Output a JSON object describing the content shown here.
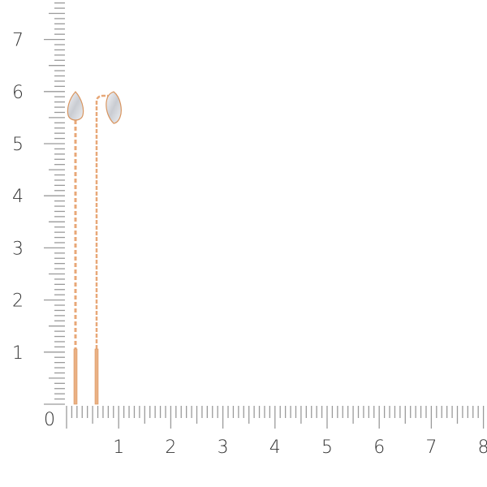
{
  "ruler": {
    "zero_label": "0",
    "vertical_labels": [
      "1",
      "2",
      "3",
      "4",
      "5",
      "6",
      "7"
    ],
    "horizontal_labels": [
      "1",
      "2",
      "3",
      "4",
      "5",
      "6",
      "7",
      "8"
    ],
    "unit_step_mm": 1,
    "tick_color": "#9a9a9a"
  },
  "product": {
    "metal_color": "#e8a878",
    "stone_color": "#e6e8ec",
    "items": [
      "earring-left",
      "earring-right"
    ]
  }
}
